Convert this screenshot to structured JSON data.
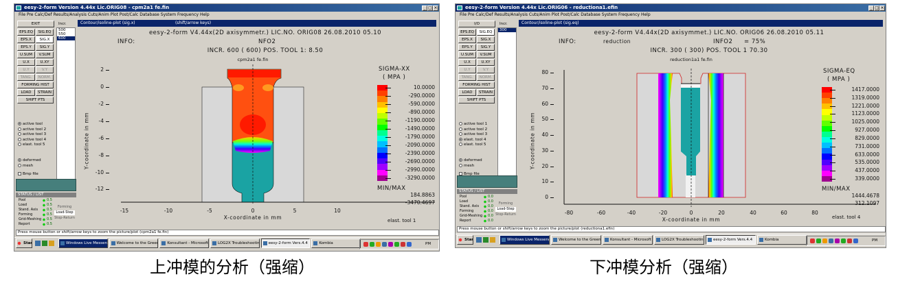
{
  "captions": [
    "上冲模的分析（强缩）",
    "下冲模分析（强缩）"
  ],
  "colors": {
    "title_bar": "#0a246a",
    "plot_background": "#467f7c",
    "die_gray": "#d8d8d8",
    "punch_teal": "#1aa3a3",
    "legend_bands": [
      "#ff0000",
      "#ff4000",
      "#ff8000",
      "#ffc000",
      "#ffff00",
      "#c0ff00",
      "#60ff00",
      "#00ff00",
      "#00ff90",
      "#00ffe0",
      "#00c0ff",
      "#0070ff",
      "#0000ff",
      "#5000ff",
      "#a000ff",
      "#ff00ff",
      "#a00090"
    ]
  },
  "windows": [
    {
      "title": "eesy-2-form Version 4.44x Lic.ORIG08 - cpm2a1 fe.fin",
      "menu": "File  Pre  Calc/Def  Results/Analysis  Cuts/Anim  Plot  Post/Calc  Database  System  Frequency  Help",
      "inner_title": "Contour/isoline-plot (sig.x)",
      "inner_title2": "(shift/arrow keys)",
      "panel": {
        "top_button": "EXIT",
        "list_label": "Incr.",
        "list_items": [
          "500",
          "550",
          "600"
        ],
        "list_selected": 2,
        "buttons": [
          [
            "EPS.EQ",
            "SIG.EQ"
          ],
          [
            "EPS.X",
            "SIG.X"
          ],
          [
            "EPS.Y",
            "SIG.Y"
          ],
          [
            "U.SUM",
            "V.SUM"
          ],
          [
            "U.X",
            "U.XY"
          ],
          [
            "U.Y",
            "V.Y"
          ],
          [
            "TANG.",
            "NORM."
          ]
        ],
        "selected_button": "SIG.X",
        "disabled_rows": [
          5,
          6
        ],
        "wide_buttons": [
          "FORMING HIST",
          "SHIFT PTS"
        ],
        "pair_row": [
          "LOAD",
          "STRAIN"
        ],
        "radios": [
          "active tool",
          "active tool 2",
          "active tool 3",
          "active tool 4",
          "elast. tool 5"
        ],
        "radio_selected": 0,
        "radios2": [
          "deformed",
          "mesh"
        ],
        "radio2_selected": 0,
        "checkbox": "Bmp file",
        "status_header": "STATUS / LIST",
        "status_rows": [
          [
            "Pool",
            "0.5"
          ],
          [
            "Load",
            "0.5"
          ],
          [
            "Stand. Axis",
            "0.5"
          ],
          [
            "Forming",
            "0.5"
          ],
          [
            "Grid-Meshing",
            "0.5"
          ],
          [
            "Report",
            "0.5"
          ]
        ],
        "status_side": [
          "Forming",
          "Load-Step",
          "Stop-Return"
        ],
        "status_side_selected": 1
      },
      "header": {
        "line1": "eesy-2-form V4.44x(2D axisymmetr.)    LIC.NO. ORIG08    26.08.2010  05.10",
        "info": "INFO:",
        "info_value": "",
        "info2": "NFO2",
        "info2_value": "",
        "incr": "INCR.  600 ( 600)      POS. TOOL   1:     8.50",
        "subtitle": "cpm2a1 fe.fin"
      },
      "plot": {
        "y_ticks": [
          "2",
          "0",
          "-2",
          "-4",
          "-6",
          "-8",
          "-10",
          "-12"
        ],
        "x_ticks": [
          "-15",
          "-10",
          "-5",
          "0",
          "5",
          "10"
        ],
        "x_label": "X-coordinate in mm",
        "y_label": "Y-coordinate in mm"
      },
      "legend": {
        "title": "SIGMA-XX",
        "unit": "( MPA   )",
        "values": [
          "10.0000",
          "-290.0000",
          "-590.0000",
          "-890.0000",
          "-1190.0000",
          "-1490.0000",
          "-1790.0000",
          "-2090.0000",
          "-2390.0000",
          "-2690.0000",
          "-2990.0000",
          "-3290.0000"
        ],
        "minmax_label": "MIN/MAX",
        "max": "184.8863",
        "min": "-3470.4697",
        "tool": "elast. tool    1"
      },
      "status_line": "Press mouse button or shift/arrow keys to zoom the picture/plot (cpm2a1 fe.fin)",
      "taskbar": {
        "start": "Start",
        "items": [
          "Windows Live Messenger",
          "Welcome to the Green",
          "Konsultant - Microsoft",
          "LOG2X Troubleshooting",
          "eesy-2-form Vers.4.4",
          "Kombia"
        ],
        "active": 4,
        "clock": "PM"
      }
    },
    {
      "title": "eesy-2-form Version 4.44x Lic.ORIG06 - reductiona1.efin",
      "menu": "File  Pre  Calc/Def  Results/Analysis  Cuts/Anim  Plot  Post/Calc  Database  System  Frequency  Help",
      "inner_title": "Contour/isoline-plot (sig.eq)",
      "inner_title2": "",
      "panel": {
        "top_button": "I/O",
        "list_label": "Incr.",
        "list_items": [
          "300"
        ],
        "list_selected": 0,
        "buttons": [
          [
            "EPS.EQ",
            "SIG.EQ"
          ],
          [
            "EPS.X",
            "SIG.X"
          ],
          [
            "EPS.Y",
            "SIG.Y"
          ],
          [
            "U.SUM",
            "V.SUM"
          ],
          [
            "U.X",
            "U.XY"
          ],
          [
            "U.Y",
            "V.Y"
          ],
          [
            "TANG.",
            "NORM."
          ]
        ],
        "selected_button": "SIG.EQ",
        "disabled_rows": [
          5,
          6
        ],
        "wide_buttons": [
          "FORMING HIST",
          "SHIFT PTS"
        ],
        "pair_row": [
          "LOAD",
          "STRAIN"
        ],
        "radios": [
          "active tool 1",
          "active tool 2",
          "active tool 3",
          "elast. tool 4",
          "elast. tool 5"
        ],
        "radio_selected": 3,
        "radios2": [
          "deformed",
          "mesh"
        ],
        "radio2_selected": 0,
        "checkbox": "Bmp file",
        "status_header": "STATUS / LIST",
        "status_rows": [
          [
            "Pool",
            "0.0"
          ],
          [
            "Load",
            "0.0"
          ],
          [
            "Stand. Axis",
            "0.0"
          ],
          [
            "Forming",
            "0.0"
          ],
          [
            "Grid-Meshing",
            "0.0"
          ],
          [
            "Report",
            "0.0"
          ]
        ],
        "status_side": [
          "Forming",
          "Load-Step",
          "Stop-Return"
        ],
        "status_side_selected": 1
      },
      "header": {
        "line1": "eesy-2-form V4.44x(2D axisymmet.)    LIC.NO. ORIG06    26.08.2010  05.11",
        "info": "INFO:",
        "info_value": "reduction",
        "info2": "INFO2",
        "info2_value": "=   75%",
        "incr": "INCR.  300 ( 300)     POS. TOOL   1    70.30",
        "subtitle": "reduction1a1 fe.fin"
      },
      "plot": {
        "y_ticks": [
          "80",
          "70",
          "60",
          "50",
          "40",
          "30",
          "20",
          "10",
          "0"
        ],
        "x_ticks": [
          "-80",
          "-60",
          "-40",
          "-20",
          "0",
          "20",
          "40",
          "60",
          "80"
        ],
        "x_label": "X-coordinate in mm",
        "y_label": "Y-coordinate in mm"
      },
      "legend": {
        "title": "SIGMA-EQ",
        "unit": "( MPA   )",
        "values": [
          "1417.0000",
          "1319.0000",
          "1221.0000",
          "1123.0000",
          "1025.0000",
          "927.0000",
          "829.0000",
          "731.0000",
          "633.0000",
          "535.0000",
          "437.0000",
          "339.0000"
        ],
        "minmax_label": "MIN/MAX",
        "max": "1444.4678",
        "min": "312.1097",
        "tool": "elast. tool    4"
      },
      "status_line": "Press mouse button or shift/arrow keys to zoom the picture/plot (reductiona1.efin)",
      "taskbar": {
        "start": "Start",
        "items": [
          "Windows Live Messenger",
          "Welcome to the Green",
          "Konsultant - Microsoft",
          "LOG2X Troubleshooting",
          "eesy-2-form Vers.4.4",
          "Kombia"
        ],
        "active": 4,
        "clock": "PM"
      }
    }
  ]
}
